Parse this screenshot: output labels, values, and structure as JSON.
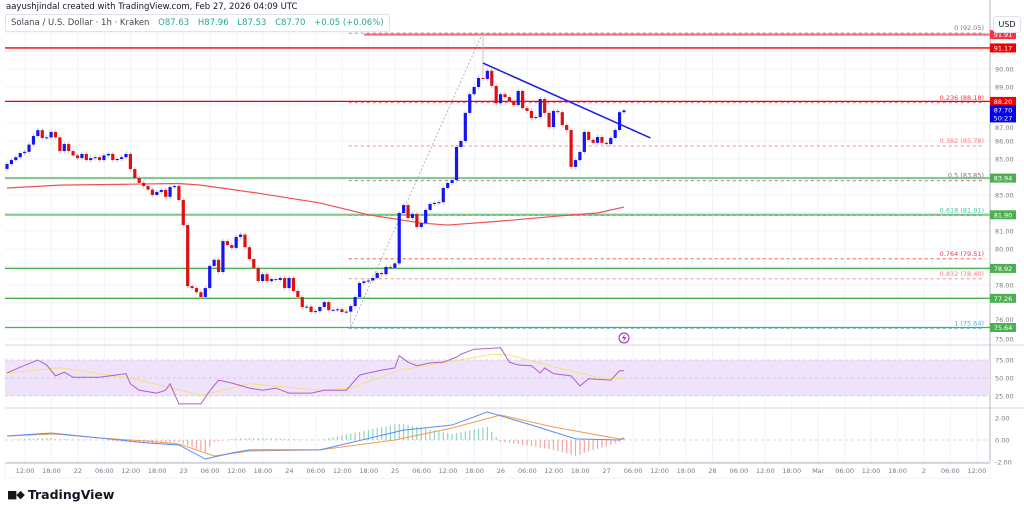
{
  "header": {
    "credit": "aayushjindal created with TradingView.com, Feb 27, 2026 04:09 UTC"
  },
  "legend": {
    "symbol": "Solana / U.S. Dollar · 1h · Kraken",
    "open": "O87.63",
    "high": "H87.96",
    "low": "L87.53",
    "close": "C87.70",
    "change": "+0.05 (+0.06%)"
  },
  "currency": "USD",
  "brand": {
    "logo_text": "TV",
    "name": "TradingView"
  },
  "colors": {
    "up": "#1515f0",
    "down": "#e01010",
    "ma": "#f05050",
    "trendline": "#1b1bea",
    "support": "#4caf50",
    "resistance": "#f00000",
    "rsi": "#b05fc8",
    "rsi_ma": "#f5e07a",
    "rsi_band": "#efe3fb",
    "macd": "#5b8cf5",
    "signal": "#f59a4c",
    "hist_up": "#8fd4c4",
    "hist_down": "#f5a3a3"
  },
  "chart_data": {
    "type": "candlestick",
    "symbol": "Solana / U.S. Dollar",
    "interval": "1h",
    "start": "2026-02-21 08:00",
    "first_open": 84.45,
    "close": [
      84.72,
      84.94,
      85.1,
      85.33,
      85.4,
      85.8,
      86.28,
      86.6,
      86.17,
      86.2,
      86.5,
      86.2,
      85.44,
      85.83,
      85.44,
      85.2,
      85.05,
      85.28,
      84.94,
      85.05,
      85.1,
      84.94,
      85.2,
      85.28,
      84.94,
      85.0,
      85.1,
      85.28,
      84.44,
      83.94,
      83.67,
      83.5,
      83.3,
      83.0,
      83.17,
      83.28,
      82.9,
      83.44,
      83.5,
      82.72,
      81.33,
      77.94,
      77.83,
      77.6,
      77.33,
      77.83,
      79.06,
      79.4,
      78.72,
      80.44,
      80.22,
      80.06,
      80.67,
      80.8,
      80.1,
      79.44,
      78.94,
      78.22,
      78.6,
      78.22,
      78.33,
      78.28,
      78.39,
      77.83,
      78.39,
      77.67,
      77.33,
      76.78,
      76.8,
      76.5,
      76.55,
      76.78,
      77.05,
      76.6,
      76.62,
      76.65,
      76.5,
      76.52,
      76.83,
      77.33,
      78.11,
      78.2,
      78.25,
      78.39,
      78.67,
      78.6,
      79.0,
      78.95,
      79.2,
      82.0,
      82.44,
      81.72,
      81.94,
      81.22,
      81.44,
      82.17,
      82.5,
      82.56,
      82.6,
      83.39,
      83.67,
      83.83,
      85.67,
      86.0,
      87.56,
      88.6,
      89.0,
      89.5,
      89.45,
      89.9,
      89.06,
      88.1,
      88.6,
      88.44,
      88.22,
      88.0,
      88.78,
      87.83,
      87.67,
      87.28,
      87.33,
      88.33,
      87.56,
      86.78,
      87.67,
      87.6,
      86.89,
      86.61,
      84.56,
      84.94,
      85.39,
      86.5,
      86.06,
      85.9,
      86.22,
      85.9,
      85.83,
      86.17,
      86.61,
      87.6,
      87.7
    ],
    "moving_average": [
      {
        "t": "2026-02-21 08:00",
        "v": 83.39
      },
      {
        "t": "2026-02-21 20:00",
        "v": 83.55
      },
      {
        "t": "2026-02-22 12:00",
        "v": 83.6
      },
      {
        "t": "2026-02-22 23:00",
        "v": 83.64
      },
      {
        "t": "2026-02-23 04:00",
        "v": 83.55
      },
      {
        "t": "2026-02-23 17:00",
        "v": 83.1
      },
      {
        "t": "2026-02-24 07:00",
        "v": 82.56
      },
      {
        "t": "2026-02-24 18:00",
        "v": 81.9
      },
      {
        "t": "2026-02-25 06:00",
        "v": 81.44
      },
      {
        "t": "2026-02-25 12:00",
        "v": 81.33
      },
      {
        "t": "2026-02-26 00:00",
        "v": 81.55
      },
      {
        "t": "2026-02-26 13:00",
        "v": 81.83
      },
      {
        "t": "2026-02-26 22:00",
        "v": 82.0
      },
      {
        "t": "2026-02-27 04:00",
        "v": 82.33
      }
    ],
    "trendline": [
      {
        "t": "2026-02-25 20:00",
        "v": 90.33
      },
      {
        "t": "2026-02-27 10:00",
        "v": 86.17
      }
    ],
    "fib": {
      "high": {
        "t": "2026-02-25 20:00",
        "price": 92.05
      },
      "low": {
        "t": "2026-02-24 14:00",
        "price": 75.64
      },
      "levels": [
        {
          "label": "0 (92.05)",
          "price": 92.05,
          "color": "#787b86"
        },
        {
          "label": "0.236 (88.18)",
          "price": 88.18,
          "color": "#f23645"
        },
        {
          "label": "0.382 (85.78)",
          "price": 85.78,
          "color": "#f77c80"
        },
        {
          "label": "0.5 (83.85)",
          "price": 83.85,
          "color": "#9c6b85"
        },
        {
          "label": "0.618 (81.91)",
          "price": 81.91,
          "color": "#3bc9a0"
        },
        {
          "label": "0.764 (79.51)",
          "price": 79.51,
          "color": "#e8414f"
        },
        {
          "label": "0.832 (78.40)",
          "price": 78.4,
          "color": "#f77c80"
        },
        {
          "label": "1 (75.64)",
          "price": 75.64,
          "color": "#4fb2e0"
        }
      ]
    },
    "horizontal_levels": [
      {
        "price": 91.91,
        "tag": "91.91",
        "color": "#f77070",
        "from": "2026-02-24 17:00",
        "width": 2
      },
      {
        "price": 91.17,
        "tag": "91.17",
        "color": "#f00000",
        "width": 1.3
      },
      {
        "price": 88.2,
        "tag": "88.20",
        "color": "#f00000",
        "width": 1.3
      },
      {
        "price": 83.94,
        "tag": "83.94",
        "color": "#81c784",
        "width": 2
      },
      {
        "price": 81.9,
        "tag": "81.90",
        "color": "#81c784",
        "width": 2
      },
      {
        "price": 78.92,
        "tag": "78.92",
        "color": "#4caf50",
        "width": 1.3
      },
      {
        "price": 77.26,
        "tag": "77.26",
        "color": "#4caf50",
        "width": 1.3
      },
      {
        "price": 75.64,
        "tag": "75.64",
        "color": "#4caf50",
        "width": 1.3
      }
    ],
    "last_price": {
      "value": "87.70",
      "countdown": "50:27",
      "color": "#0000ee",
      "price": 87.7
    },
    "price_axis": [
      "90.00",
      "89.00",
      "87.00",
      "86.00",
      "85.00",
      "83.00",
      "81.00",
      "80.00",
      "78.00",
      "76.00",
      "75.00"
    ],
    "time_axis": [
      "12:00",
      "18:00",
      "22",
      "06:00",
      "12:00",
      "18:00",
      "23",
      "06:00",
      "12:00",
      "18:00",
      "24",
      "06:00",
      "12:00",
      "18:00",
      "25",
      "06:00",
      "12:00",
      "18:00",
      "26",
      "06:00",
      "12:00",
      "18:00",
      "27",
      "06:00",
      "12:00",
      "18:00",
      "28",
      "06:00",
      "12:00",
      "18:00",
      "Mar",
      "06:00",
      "12:00",
      "18:00",
      "2",
      "06:00",
      "12:00"
    ],
    "rsi": {
      "axis": [
        "75.00",
        "50.00",
        "25.00"
      ],
      "band": [
        30,
        70
      ],
      "values": [
        {
          "t": "2026-02-21 08:00",
          "v": 57
        },
        {
          "t": "2026-02-21 11:00",
          "v": 65
        },
        {
          "t": "2026-02-21 15:00",
          "v": 75
        },
        {
          "t": "2026-02-21 17:00",
          "v": 68
        },
        {
          "t": "2026-02-21 19:00",
          "v": 53
        },
        {
          "t": "2026-02-21 21:00",
          "v": 58
        },
        {
          "t": "2026-02-21 23:00",
          "v": 51
        },
        {
          "t": "2026-02-22 05:00",
          "v": 51
        },
        {
          "t": "2026-02-22 11:00",
          "v": 56
        },
        {
          "t": "2026-02-22 12:00",
          "v": 42
        },
        {
          "t": "2026-02-22 14:00",
          "v": 33
        },
        {
          "t": "2026-02-22 18:00",
          "v": 29
        },
        {
          "t": "2026-02-22 20:00",
          "v": 33
        },
        {
          "t": "2026-02-22 21:00",
          "v": 42
        },
        {
          "t": "2026-02-22 23:00",
          "v": 14
        },
        {
          "t": "2026-02-23 04:00",
          "v": 14
        },
        {
          "t": "2026-02-23 06:00",
          "v": 32
        },
        {
          "t": "2026-02-23 08:00",
          "v": 47
        },
        {
          "t": "2026-02-23 11:00",
          "v": 43
        },
        {
          "t": "2026-02-23 15:00",
          "v": 36
        },
        {
          "t": "2026-02-23 18:00",
          "v": 33
        },
        {
          "t": "2026-02-23 21:00",
          "v": 36
        },
        {
          "t": "2026-02-24 00:00",
          "v": 29
        },
        {
          "t": "2026-02-24 05:00",
          "v": 29
        },
        {
          "t": "2026-02-24 08:00",
          "v": 33
        },
        {
          "t": "2026-02-24 13:00",
          "v": 33
        },
        {
          "t": "2026-02-24 16:00",
          "v": 54
        },
        {
          "t": "2026-02-24 18:00",
          "v": 57
        },
        {
          "t": "2026-02-24 21:00",
          "v": 61
        },
        {
          "t": "2026-02-25 00:00",
          "v": 64
        },
        {
          "t": "2026-02-25 01:00",
          "v": 81
        },
        {
          "t": "2026-02-25 03:00",
          "v": 72
        },
        {
          "t": "2026-02-25 05:00",
          "v": 67
        },
        {
          "t": "2026-02-25 08:00",
          "v": 71
        },
        {
          "t": "2026-02-25 11:00",
          "v": 72
        },
        {
          "t": "2026-02-25 14:00",
          "v": 79
        },
        {
          "t": "2026-02-25 15:00",
          "v": 83
        },
        {
          "t": "2026-02-25 18:00",
          "v": 90
        },
        {
          "t": "2026-02-26 00:00",
          "v": 92
        },
        {
          "t": "2026-02-26 02:00",
          "v": 72
        },
        {
          "t": "2026-02-26 04:00",
          "v": 68
        },
        {
          "t": "2026-02-26 07:00",
          "v": 67
        },
        {
          "t": "2026-02-26 09:00",
          "v": 57
        },
        {
          "t": "2026-02-26 10:00",
          "v": 64
        },
        {
          "t": "2026-02-26 12:00",
          "v": 56
        },
        {
          "t": "2026-02-26 16:00",
          "v": 53
        },
        {
          "t": "2026-02-26 18:00",
          "v": 39
        },
        {
          "t": "2026-02-26 20:00",
          "v": 49
        },
        {
          "t": "2026-02-27 01:00",
          "v": 47
        },
        {
          "t": "2026-02-27 03:00",
          "v": 60
        },
        {
          "t": "2026-02-27 04:00",
          "v": 60
        }
      ],
      "ma": [
        {
          "t": "2026-02-21 08:00",
          "v": 57
        },
        {
          "t": "2026-02-21 20:00",
          "v": 64
        },
        {
          "t": "2026-02-22 12:00",
          "v": 50
        },
        {
          "t": "2026-02-23 04:00",
          "v": 26
        },
        {
          "t": "2026-02-23 15:00",
          "v": 42
        },
        {
          "t": "2026-02-24 07:00",
          "v": 33
        },
        {
          "t": "2026-02-24 14:00",
          "v": 36
        },
        {
          "t": "2026-02-25 01:00",
          "v": 61
        },
        {
          "t": "2026-02-25 12:00",
          "v": 72
        },
        {
          "t": "2026-02-25 22:00",
          "v": 83
        },
        {
          "t": "2026-02-26 02:00",
          "v": 82
        },
        {
          "t": "2026-02-26 13:00",
          "v": 64
        },
        {
          "t": "2026-02-26 23:00",
          "v": 50
        },
        {
          "t": "2026-02-27 04:00",
          "v": 49
        }
      ]
    },
    "macd": {
      "axis": [
        "2.00",
        "0.00",
        "-2.00"
      ],
      "macd": [
        {
          "t": "2026-02-21 08:00",
          "v": 0.36
        },
        {
          "t": "2026-02-21 18:00",
          "v": 0.64
        },
        {
          "t": "2026-02-22 05:00",
          "v": 0.18
        },
        {
          "t": "2026-02-22 16:00",
          "v": -0.27
        },
        {
          "t": "2026-02-22 23:00",
          "v": -0.45
        },
        {
          "t": "2026-02-23 05:00",
          "v": -1.73
        },
        {
          "t": "2026-02-23 11:00",
          "v": -1.18
        },
        {
          "t": "2026-02-23 15:00",
          "v": -0.9
        },
        {
          "t": "2026-02-24 07:00",
          "v": -0.9
        },
        {
          "t": "2026-02-25 02:00",
          "v": 0.9
        },
        {
          "t": "2026-02-25 13:00",
          "v": 1.36
        },
        {
          "t": "2026-02-25 21:00",
          "v": 2.55
        },
        {
          "t": "2026-02-26 07:00",
          "v": 1.36
        },
        {
          "t": "2026-02-26 17:00",
          "v": 0.1
        },
        {
          "t": "2026-02-27 03:00",
          "v": 0.0
        },
        {
          "t": "2026-02-27 04:00",
          "v": 0.18
        }
      ],
      "signal": [
        {
          "t": "2026-02-21 08:00",
          "v": 0.36
        },
        {
          "t": "2026-02-21 19:00",
          "v": 0.55
        },
        {
          "t": "2026-02-22 05:00",
          "v": 0.18
        },
        {
          "t": "2026-02-22 16:00",
          "v": -0.1
        },
        {
          "t": "2026-02-22 23:00",
          "v": -0.36
        },
        {
          "t": "2026-02-23 07:00",
          "v": -1.45
        },
        {
          "t": "2026-02-23 15:00",
          "v": -1.0
        },
        {
          "t": "2026-02-24 07:00",
          "v": -0.9
        },
        {
          "t": "2026-02-25 00:00",
          "v": 0.0
        },
        {
          "t": "2026-02-25 13:00",
          "v": 1.09
        },
        {
          "t": "2026-02-26 00:00",
          "v": 2.27
        },
        {
          "t": "2026-02-26 12:00",
          "v": 1.18
        },
        {
          "t": "2026-02-27 03:00",
          "v": 0.09
        },
        {
          "t": "2026-02-27 04:00",
          "v": 0.1
        }
      ]
    }
  }
}
